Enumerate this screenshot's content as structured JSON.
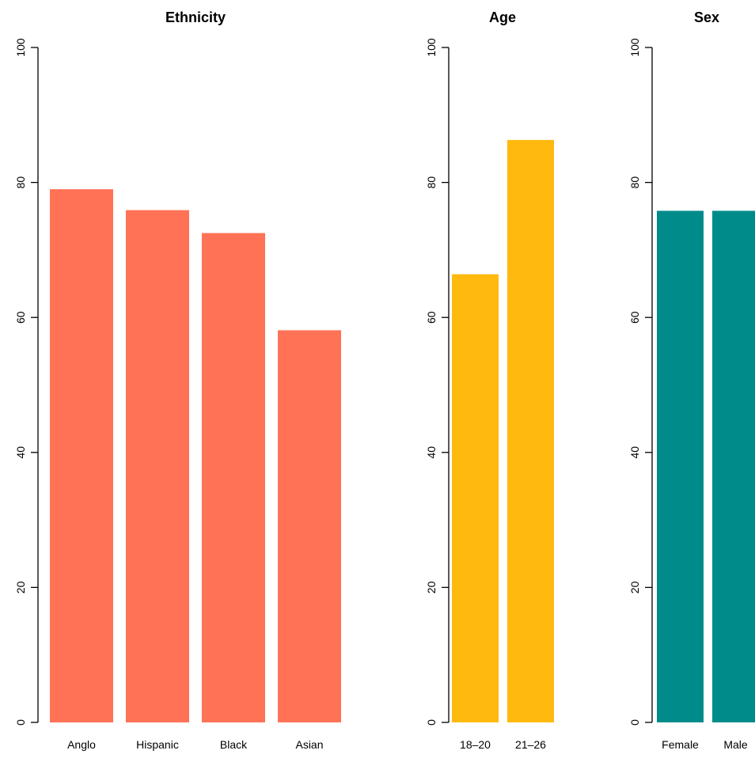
{
  "chart_data": [
    {
      "type": "bar",
      "title": "Ethnicity",
      "xlabel": "",
      "ylabel": "",
      "ylim": [
        0,
        100
      ],
      "yticks": [
        "0",
        "20",
        "40",
        "60",
        "80",
        "100"
      ],
      "categories": [
        "Anglo",
        "Hispanic",
        "Black",
        "Asian"
      ],
      "values": [
        79,
        75.9,
        72.5,
        58.1
      ],
      "color": "#ff7256",
      "grid": false
    },
    {
      "type": "bar",
      "title": "Age",
      "xlabel": "",
      "ylabel": "",
      "ylim": [
        0,
        100
      ],
      "yticks": [
        "0",
        "20",
        "40",
        "60",
        "80",
        "100"
      ],
      "categories": [
        "18–20",
        "21–26"
      ],
      "values": [
        66.4,
        86.3
      ],
      "color": "#ffb90f",
      "grid": false
    },
    {
      "type": "bar",
      "title": "Sex",
      "xlabel": "",
      "ylabel": "",
      "ylim": [
        0,
        100
      ],
      "yticks": [
        "0",
        "20",
        "40",
        "60",
        "80",
        "100"
      ],
      "categories": [
        "Female",
        "Male"
      ],
      "values": [
        75.8,
        75.8
      ],
      "color": "#008b8b",
      "grid": false
    }
  ]
}
